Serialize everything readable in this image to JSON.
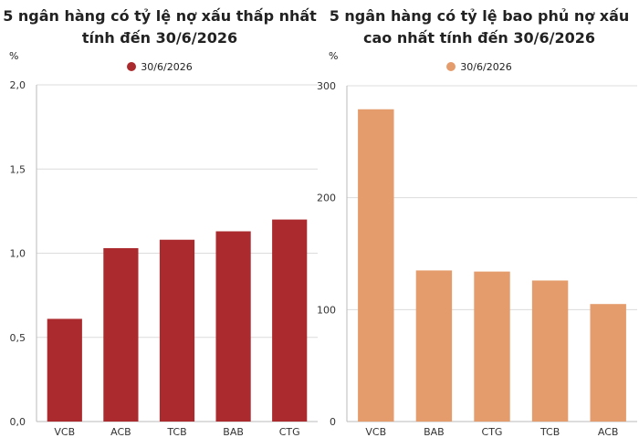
{
  "chart_data": [
    {
      "type": "bar",
      "title": "5 ngân hàng có tỷ lệ nợ xấu thấp nhất tính đến 30/6/2026",
      "unit": "%",
      "legend": "30/6/2026",
      "color": "#ab2a2e",
      "categories": [
        "VCB",
        "ACB",
        "TCB",
        "BAB",
        "CTG"
      ],
      "values": [
        0.61,
        1.03,
        1.08,
        1.13,
        1.2
      ],
      "yticks": [
        "0,0",
        "0,5",
        "1,0",
        "1,5",
        "2,0"
      ],
      "ylim": [
        0,
        2
      ],
      "grid": true,
      "legend_position": "top-center"
    },
    {
      "type": "bar",
      "title": "5 ngân hàng có tỷ lệ bao phủ nợ xấu cao nhất tính đến 30/6/2026",
      "unit": "%",
      "legend": "30/6/2026",
      "color": "#e59c6c",
      "categories": [
        "VCB",
        "BAB",
        "CTG",
        "TCB",
        "ACB"
      ],
      "values": [
        279,
        135,
        134,
        126,
        105
      ],
      "yticks": [
        "0",
        "100",
        "200",
        "300"
      ],
      "ylim": [
        0,
        300
      ],
      "grid": true,
      "legend_position": "top-center"
    }
  ]
}
